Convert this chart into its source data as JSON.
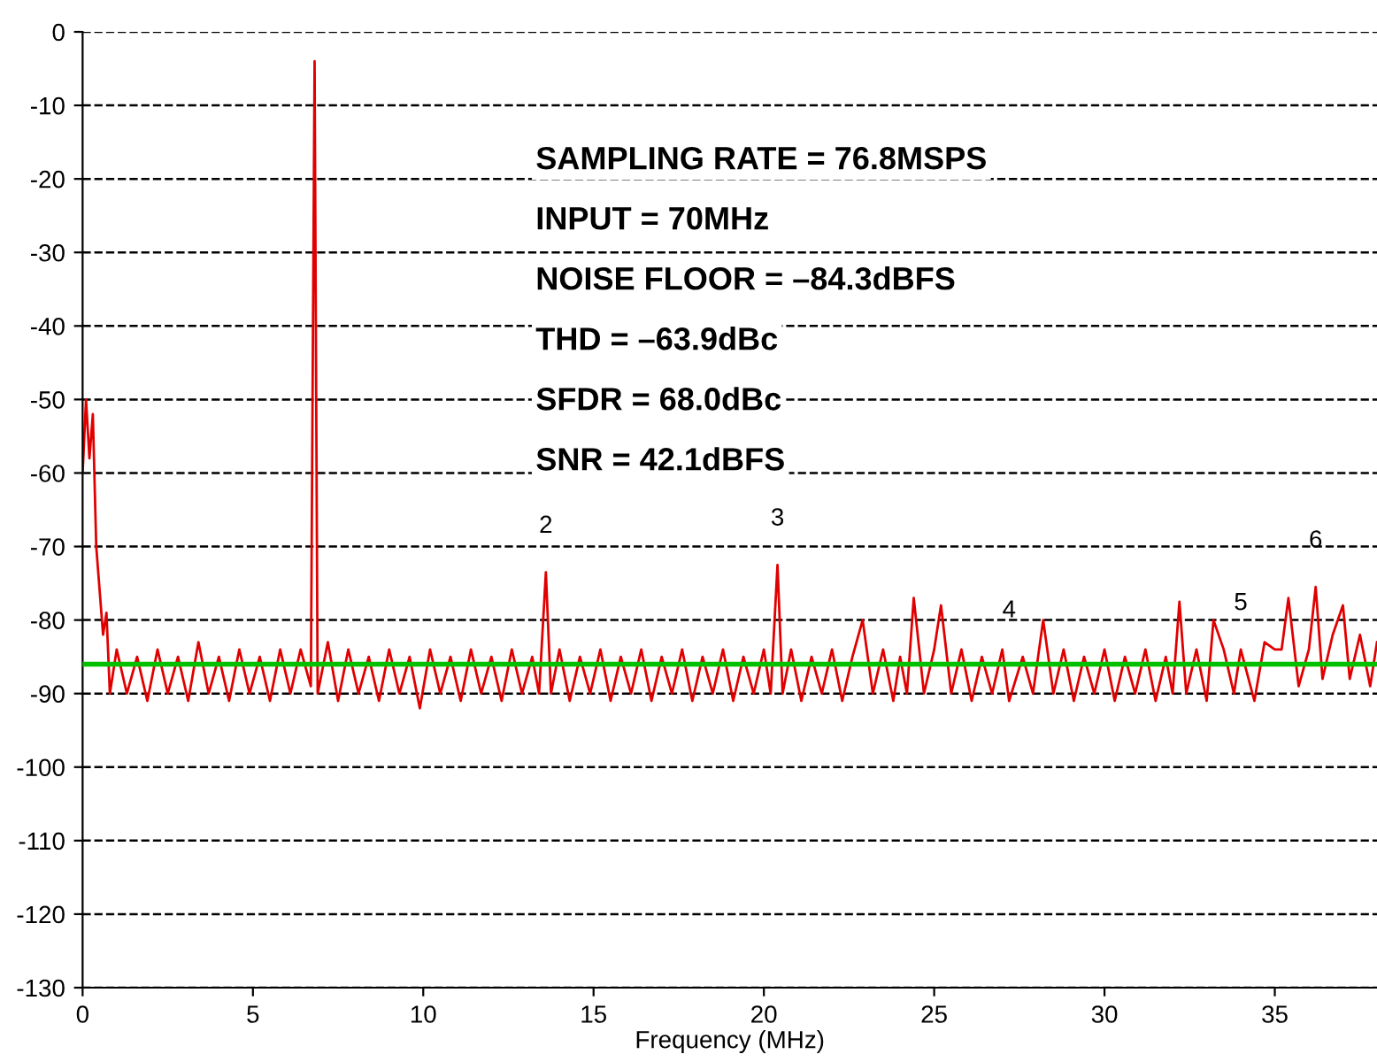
{
  "chart_data": {
    "type": "line",
    "xlabel": "Frequency (MHz)",
    "annotations": [
      "SAMPLING RATE = 76.8MSPS",
      "INPUT = 70MHz",
      "NOISE FLOOR = –84.3dBFS",
      "THD = –63.9dBc",
      "SFDR = 68.0dBc",
      "SNR = 42.1dBFS",
      {
        "text": "2",
        "x": 13.6,
        "y": -73.5
      },
      {
        "text": "3",
        "x": 20.4,
        "y": -72.5
      },
      {
        "text": "4",
        "x": 27.2,
        "y": -85
      },
      {
        "text": "5",
        "x": 34.0,
        "y": -84
      },
      {
        "text": "6",
        "x": 36.2,
        "y": -75.5
      }
    ],
    "series": [
      {
        "color": "#e00000",
        "x": [
          0,
          0.1,
          0.2,
          0.3,
          0.4,
          0.5,
          0.6,
          0.7,
          0.8,
          1.0,
          1.3,
          1.6,
          1.9,
          2.2,
          2.5,
          2.8,
          3.1,
          3.4,
          3.7,
          4.0,
          4.3,
          4.6,
          4.9,
          5.2,
          5.5,
          5.8,
          6.1,
          6.4,
          6.7,
          6.81,
          6.9,
          7.2,
          7.5,
          7.8,
          8.1,
          8.4,
          8.7,
          9.0,
          9.3,
          9.6,
          9.9,
          10.2,
          10.5,
          10.8,
          11.1,
          11.4,
          11.7,
          12.0,
          12.3,
          12.6,
          12.9,
          13.2,
          13.4,
          13.6,
          13.75,
          14.0,
          14.3,
          14.6,
          14.9,
          15.2,
          15.5,
          15.8,
          16.1,
          16.4,
          16.7,
          17.0,
          17.3,
          17.6,
          17.9,
          18.2,
          18.5,
          18.8,
          19.1,
          19.4,
          19.7,
          20.0,
          20.2,
          20.4,
          20.55,
          20.8,
          21.1,
          21.4,
          21.7,
          22.0,
          22.3,
          22.6,
          22.9,
          23.2,
          23.5,
          23.8,
          24.0,
          24.2,
          24.4,
          24.7,
          25.0,
          25.2,
          25.5,
          25.8,
          26.1,
          26.4,
          26.7,
          27.0,
          27.2,
          27.6,
          27.9,
          28.2,
          28.5,
          28.8,
          29.1,
          29.4,
          29.7,
          30.0,
          30.3,
          30.6,
          30.9,
          31.2,
          31.5,
          31.8,
          32.0,
          32.2,
          32.4,
          32.7,
          33.0,
          33.2,
          33.5,
          33.8,
          34.0,
          34.4,
          34.7,
          35.0,
          35.2,
          35.4,
          35.7,
          36.0,
          36.2,
          36.4,
          36.7,
          37.0,
          37.2,
          37.5,
          37.8,
          38.0
        ],
        "values": [
          -60,
          -50,
          -58,
          -52,
          -70,
          -76,
          -82,
          -79,
          -90,
          -84,
          -90,
          -85,
          -91,
          -84,
          -90,
          -85,
          -91,
          -83,
          -90,
          -85,
          -91,
          -84,
          -90,
          -85,
          -91,
          -84,
          -90,
          -84,
          -89,
          -4,
          -90,
          -83,
          -91,
          -84,
          -90,
          -85,
          -91,
          -84,
          -90,
          -85,
          -92,
          -84,
          -90,
          -85,
          -91,
          -84,
          -90,
          -85,
          -91,
          -84,
          -90,
          -85,
          -90,
          -73.5,
          -90,
          -84,
          -91,
          -85,
          -90,
          -84,
          -91,
          -85,
          -90,
          -84,
          -91,
          -85,
          -90,
          -84,
          -91,
          -85,
          -90,
          -84,
          -91,
          -85,
          -90,
          -84,
          -90,
          -72.5,
          -90,
          -84,
          -91,
          -85,
          -90,
          -84,
          -91,
          -85,
          -80,
          -90,
          -84,
          -91,
          -85,
          -90,
          -77,
          -90,
          -84,
          -78,
          -90,
          -84,
          -91,
          -85,
          -90,
          -84,
          -91,
          -85,
          -90,
          -80,
          -90,
          -84,
          -91,
          -85,
          -90,
          -84,
          -91,
          -85,
          -90,
          -84,
          -91,
          -85,
          -90,
          -77.5,
          -90,
          -84,
          -91,
          -80,
          -84,
          -90,
          -84,
          -91,
          -83,
          -84,
          -84,
          -77,
          -89,
          -84,
          -75.5,
          -88,
          -82,
          -78,
          -88,
          -82,
          -89,
          -83
        ]
      }
    ],
    "ref_lines": [
      {
        "axis": "y",
        "value": -86,
        "color": "#00c000"
      }
    ],
    "xlim": [
      0,
      38.0
    ],
    "ylim": [
      -130,
      0
    ],
    "xticks": [
      0,
      5,
      10,
      15,
      20,
      25,
      30,
      35
    ],
    "yticks": [
      0,
      -10,
      -20,
      -30,
      -40,
      -50,
      -60,
      -70,
      -80,
      -90,
      -100,
      -110,
      -120,
      -130
    ],
    "grid": "y",
    "line_style": "solid"
  }
}
